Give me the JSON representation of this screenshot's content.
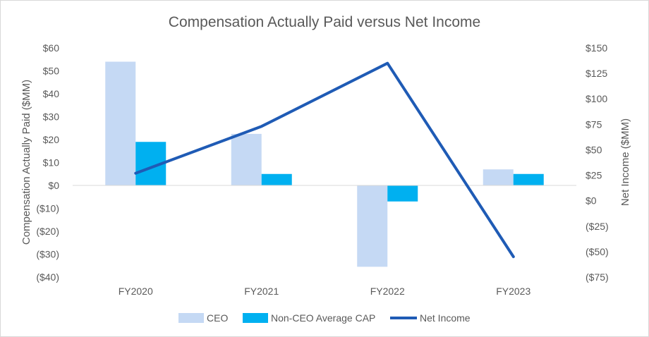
{
  "chart_data": {
    "type": "bar",
    "title": "Compensation Actually Paid versus Net Income",
    "categories": [
      "FY2020",
      "FY2021",
      "FY2022",
      "FY2023"
    ],
    "y_left": {
      "label": "Compensation Actually Paid ($MM)",
      "range": [
        -40,
        60
      ],
      "step": 10,
      "tick_labels": [
        "($40)",
        "($30)",
        "($20)",
        "($10)",
        "$0",
        "$10",
        "$20",
        "$30",
        "$40",
        "$50",
        "$60"
      ]
    },
    "y_right": {
      "label": "Net Income ($MM)",
      "range": [
        -75,
        150
      ],
      "step": 25,
      "tick_labels": [
        "($75)",
        "($50)",
        "($25)",
        "$0",
        "$25",
        "$50",
        "$75",
        "$100",
        "$125",
        "$150"
      ]
    },
    "series": [
      {
        "name": "CEO",
        "type": "bar",
        "axis": "left",
        "color": "#c5d9f4",
        "values": [
          54,
          22.5,
          -35.5,
          7
        ]
      },
      {
        "name": "Non-CEO Average CAP",
        "type": "bar",
        "axis": "left",
        "color": "#00b0f0",
        "values": [
          19,
          5,
          -7,
          5
        ]
      },
      {
        "name": "Net Income",
        "type": "line",
        "axis": "right",
        "color": "#1f5bb5",
        "values": [
          27,
          73,
          135,
          -55
        ]
      }
    ],
    "legend": {
      "position": "bottom"
    },
    "grid": false
  }
}
